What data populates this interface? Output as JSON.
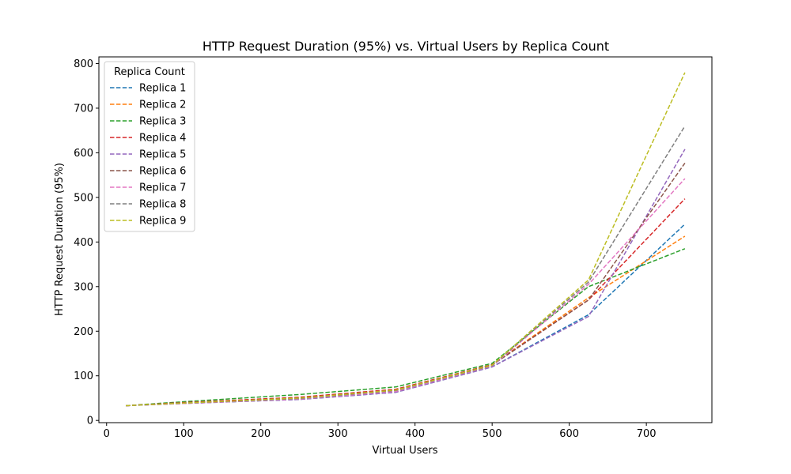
{
  "chart_data": {
    "type": "line",
    "title": "HTTP Request Duration (95%) vs. Virtual Users by Replica Count",
    "xlabel": "Virtual Users",
    "ylabel": "HTTP Request Duration (95%)",
    "xlim": [
      -10,
      785
    ],
    "ylim": [
      -5,
      815
    ],
    "xticks": [
      0,
      100,
      200,
      300,
      400,
      500,
      600,
      700
    ],
    "yticks": [
      0,
      100,
      200,
      300,
      400,
      500,
      600,
      700,
      800
    ],
    "grid": false,
    "legend": {
      "title": "Replica Count",
      "position": "top-left"
    },
    "line_style": "dashed",
    "x": [
      25,
      100,
      250,
      375,
      500,
      625,
      750
    ],
    "series": [
      {
        "name": "Replica 1",
        "color": "#1f77b4",
        "values": [
          33,
          38,
          47,
          63,
          120,
          237,
          440
        ]
      },
      {
        "name": "Replica 2",
        "color": "#ff7f0e",
        "values": [
          33,
          40,
          50,
          68,
          125,
          275,
          413
        ]
      },
      {
        "name": "Replica 3",
        "color": "#2ca02c",
        "values": [
          33,
          42,
          58,
          75,
          128,
          300,
          385
        ]
      },
      {
        "name": "Replica 4",
        "color": "#d62728",
        "values": [
          33,
          40,
          52,
          70,
          125,
          270,
          497
        ]
      },
      {
        "name": "Replica 5",
        "color": "#9467bd",
        "values": [
          33,
          38,
          47,
          63,
          120,
          233,
          608
        ]
      },
      {
        "name": "Replica 6",
        "color": "#8c564b",
        "values": [
          33,
          39,
          50,
          68,
          124,
          270,
          577
        ]
      },
      {
        "name": "Replica 7",
        "color": "#e377c2",
        "values": [
          33,
          38,
          48,
          65,
          122,
          305,
          542
        ]
      },
      {
        "name": "Replica 8",
        "color": "#7f7f7f",
        "values": [
          33,
          39,
          49,
          67,
          123,
          310,
          660
        ]
      },
      {
        "name": "Replica 9",
        "color": "#bcbd22",
        "values": [
          33,
          39,
          50,
          68,
          124,
          315,
          780
        ]
      }
    ]
  }
}
